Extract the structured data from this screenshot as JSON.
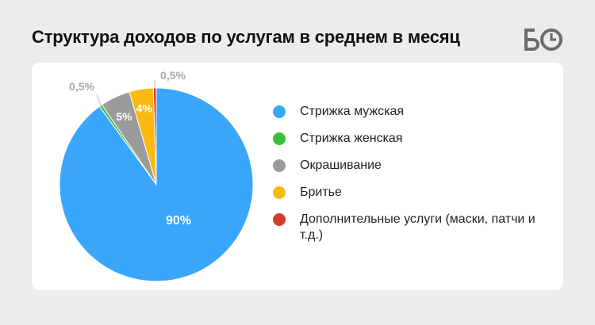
{
  "header": {
    "title": "Структура доходов по услугам в среднем в месяц",
    "logo_text": "БО"
  },
  "chart_data": {
    "type": "pie",
    "title": "Структура доходов по услугам в среднем в месяц",
    "categories": [
      "Стрижка мужская",
      "Стрижка женская",
      "Окрашивание",
      "Бритье",
      "Дополнительные услуги (маски, патчи и т.д.)"
    ],
    "values": [
      90,
      0.5,
      5,
      4,
      0.5
    ],
    "value_labels": [
      "90%",
      "0,5%",
      "5%",
      "4%",
      "0,5%"
    ],
    "colors": [
      "#3aa6fb",
      "#3cbf3f",
      "#9b9b9b",
      "#fbb90f",
      "#d83b2b"
    ],
    "legend_position": "right",
    "start_angle_deg": 0,
    "direction": "counterclockwise"
  }
}
